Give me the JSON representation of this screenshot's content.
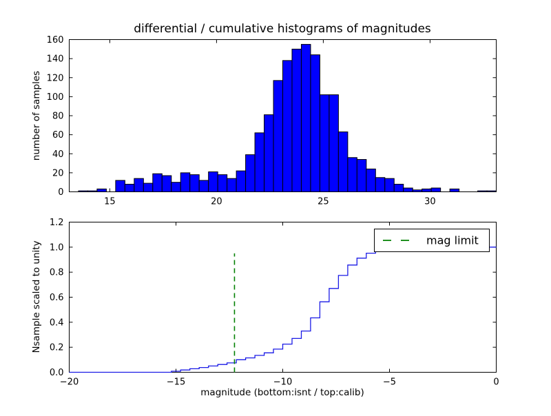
{
  "figure": {
    "title": "differential / cumulative histograms of magnitudes",
    "background": "#ffffff"
  },
  "colors": {
    "bar_fill": "#0000ff",
    "bar_edge": "#000000",
    "curve": "#1a1ae6",
    "limit_line": "#008000",
    "axis": "#000000",
    "text": "#000000"
  },
  "legend": {
    "label": "mag limit"
  },
  "chart_data": [
    {
      "type": "bar",
      "subtype": "histogram",
      "title": "differential / cumulative histograms of magnitudes",
      "xlabel": "",
      "ylabel": "number of samples",
      "xlim": [
        13.1,
        33.1
      ],
      "ylim": [
        0,
        160
      ],
      "xticks": [
        15,
        20,
        25,
        30
      ],
      "xtick_labels": [
        "15",
        "20",
        "25",
        "30"
      ],
      "yticks": [
        0,
        20,
        40,
        60,
        80,
        100,
        120,
        140,
        160
      ],
      "ytick_labels": [
        "0",
        "20",
        "40",
        "60",
        "80",
        "100",
        "120",
        "140",
        "160"
      ],
      "bin_start": 13.1,
      "bin_width": 0.4348,
      "values": [
        0,
        1,
        1,
        3,
        0,
        12,
        8,
        14,
        9,
        19,
        17,
        10,
        20,
        18,
        12,
        21,
        18,
        14,
        22,
        39,
        62,
        81,
        117,
        138,
        150,
        155,
        144,
        102,
        102,
        63,
        36,
        34,
        24,
        15,
        14,
        8,
        4,
        2,
        3,
        4,
        0,
        3,
        0,
        0,
        1,
        1
      ],
      "grid": false
    },
    {
      "type": "line",
      "subtype": "cumulative-step",
      "xlabel": "magnitude (bottom:isnt / top:calib)",
      "ylabel": "Nsample scaled to unity",
      "xlim": [
        -20,
        0
      ],
      "ylim": [
        0,
        1.2
      ],
      "xticks": [
        -20,
        -15,
        -10,
        -5,
        0
      ],
      "xtick_labels": [
        "−20",
        "−15",
        "−10",
        "−5",
        "0"
      ],
      "yticks": [
        0.0,
        0.2,
        0.4,
        0.6,
        0.8,
        1.0,
        1.2
      ],
      "ytick_labels": [
        "0.0",
        "0.2",
        "0.4",
        "0.6",
        "0.8",
        "1.0",
        "1.2"
      ],
      "bin_start": -20,
      "bin_width": 0.4348,
      "levels": [
        0,
        0,
        0,
        0,
        0,
        0,
        0,
        0,
        0,
        0,
        0,
        0.008,
        0.018,
        0.028,
        0.038,
        0.05,
        0.062,
        0.075,
        0.1,
        0.115,
        0.135,
        0.155,
        0.185,
        0.225,
        0.27,
        0.33,
        0.435,
        0.563,
        0.67,
        0.774,
        0.857,
        0.912,
        0.952,
        0.976,
        0.985,
        0.99,
        0.993,
        0.995,
        0.996,
        0.997,
        0.998,
        0.998,
        0.999,
        0.999,
        0.999,
        1.0
      ],
      "mag_limit": {
        "x": -12.26,
        "y_top": 0.95,
        "label": "mag limit"
      },
      "legend_position": "upper right",
      "grid": false
    }
  ]
}
